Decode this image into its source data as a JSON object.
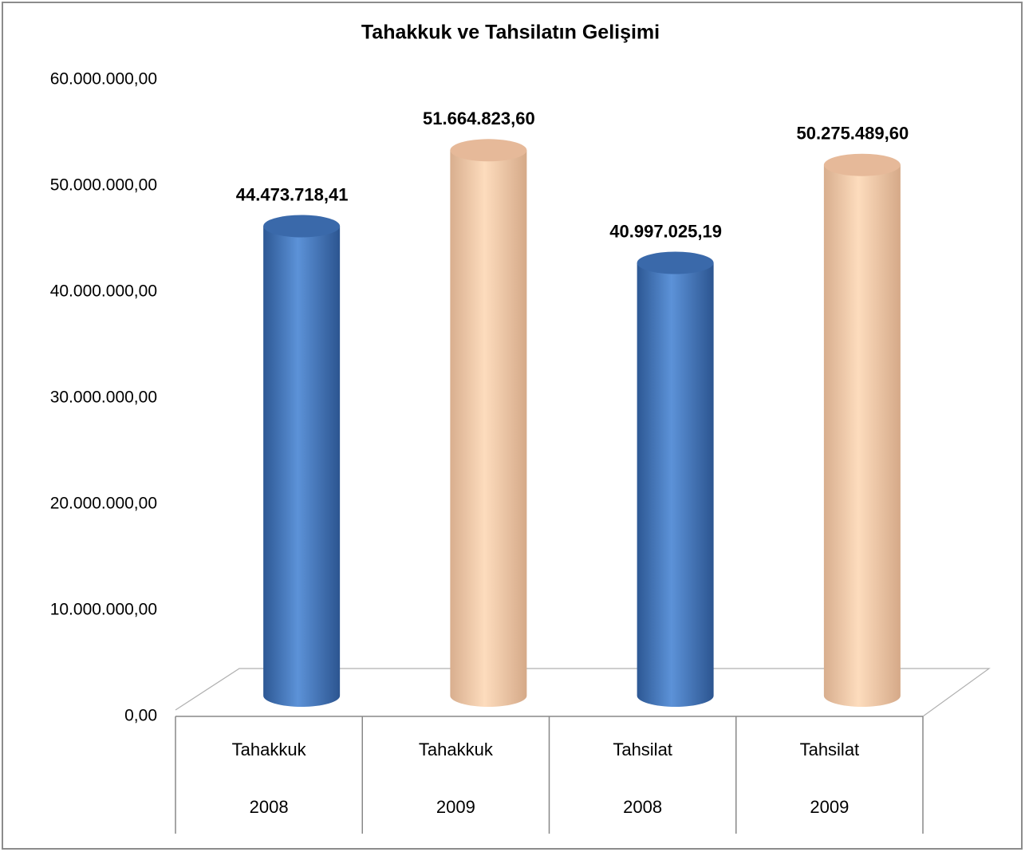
{
  "chart_data": {
    "type": "bar3d",
    "title": "Tahakkuk ve Tahsilatın Gelişimi",
    "categories": [
      "Tahakkuk",
      "Tahakkuk",
      "Tahsilat",
      "Tahsilat"
    ],
    "subcategories": [
      "2008",
      "2009",
      "2008",
      "2009"
    ],
    "values": [
      44473718.41,
      51664823.6,
      40997025.19,
      50275489.6
    ],
    "value_labels": [
      "44.473.718,41",
      "51.664.823,60",
      "40.997.025,19",
      "50.275.489,60"
    ],
    "colors": [
      "#4f81c6",
      "#f6cfae",
      "#4f81c6",
      "#f6cfae"
    ],
    "ylim": [
      0,
      60000000
    ],
    "yticks": [
      {
        "value": 0,
        "label": "0,00"
      },
      {
        "value": 10000000,
        "label": "10.000.000,00"
      },
      {
        "value": 20000000,
        "label": "20.000.000,00"
      },
      {
        "value": 30000000,
        "label": "30.000.000,00"
      },
      {
        "value": 40000000,
        "label": "40.000.000,00"
      },
      {
        "value": 50000000,
        "label": "50.000.000,00"
      },
      {
        "value": 60000000,
        "label": "60.000.000,00"
      }
    ],
    "grid": false
  }
}
